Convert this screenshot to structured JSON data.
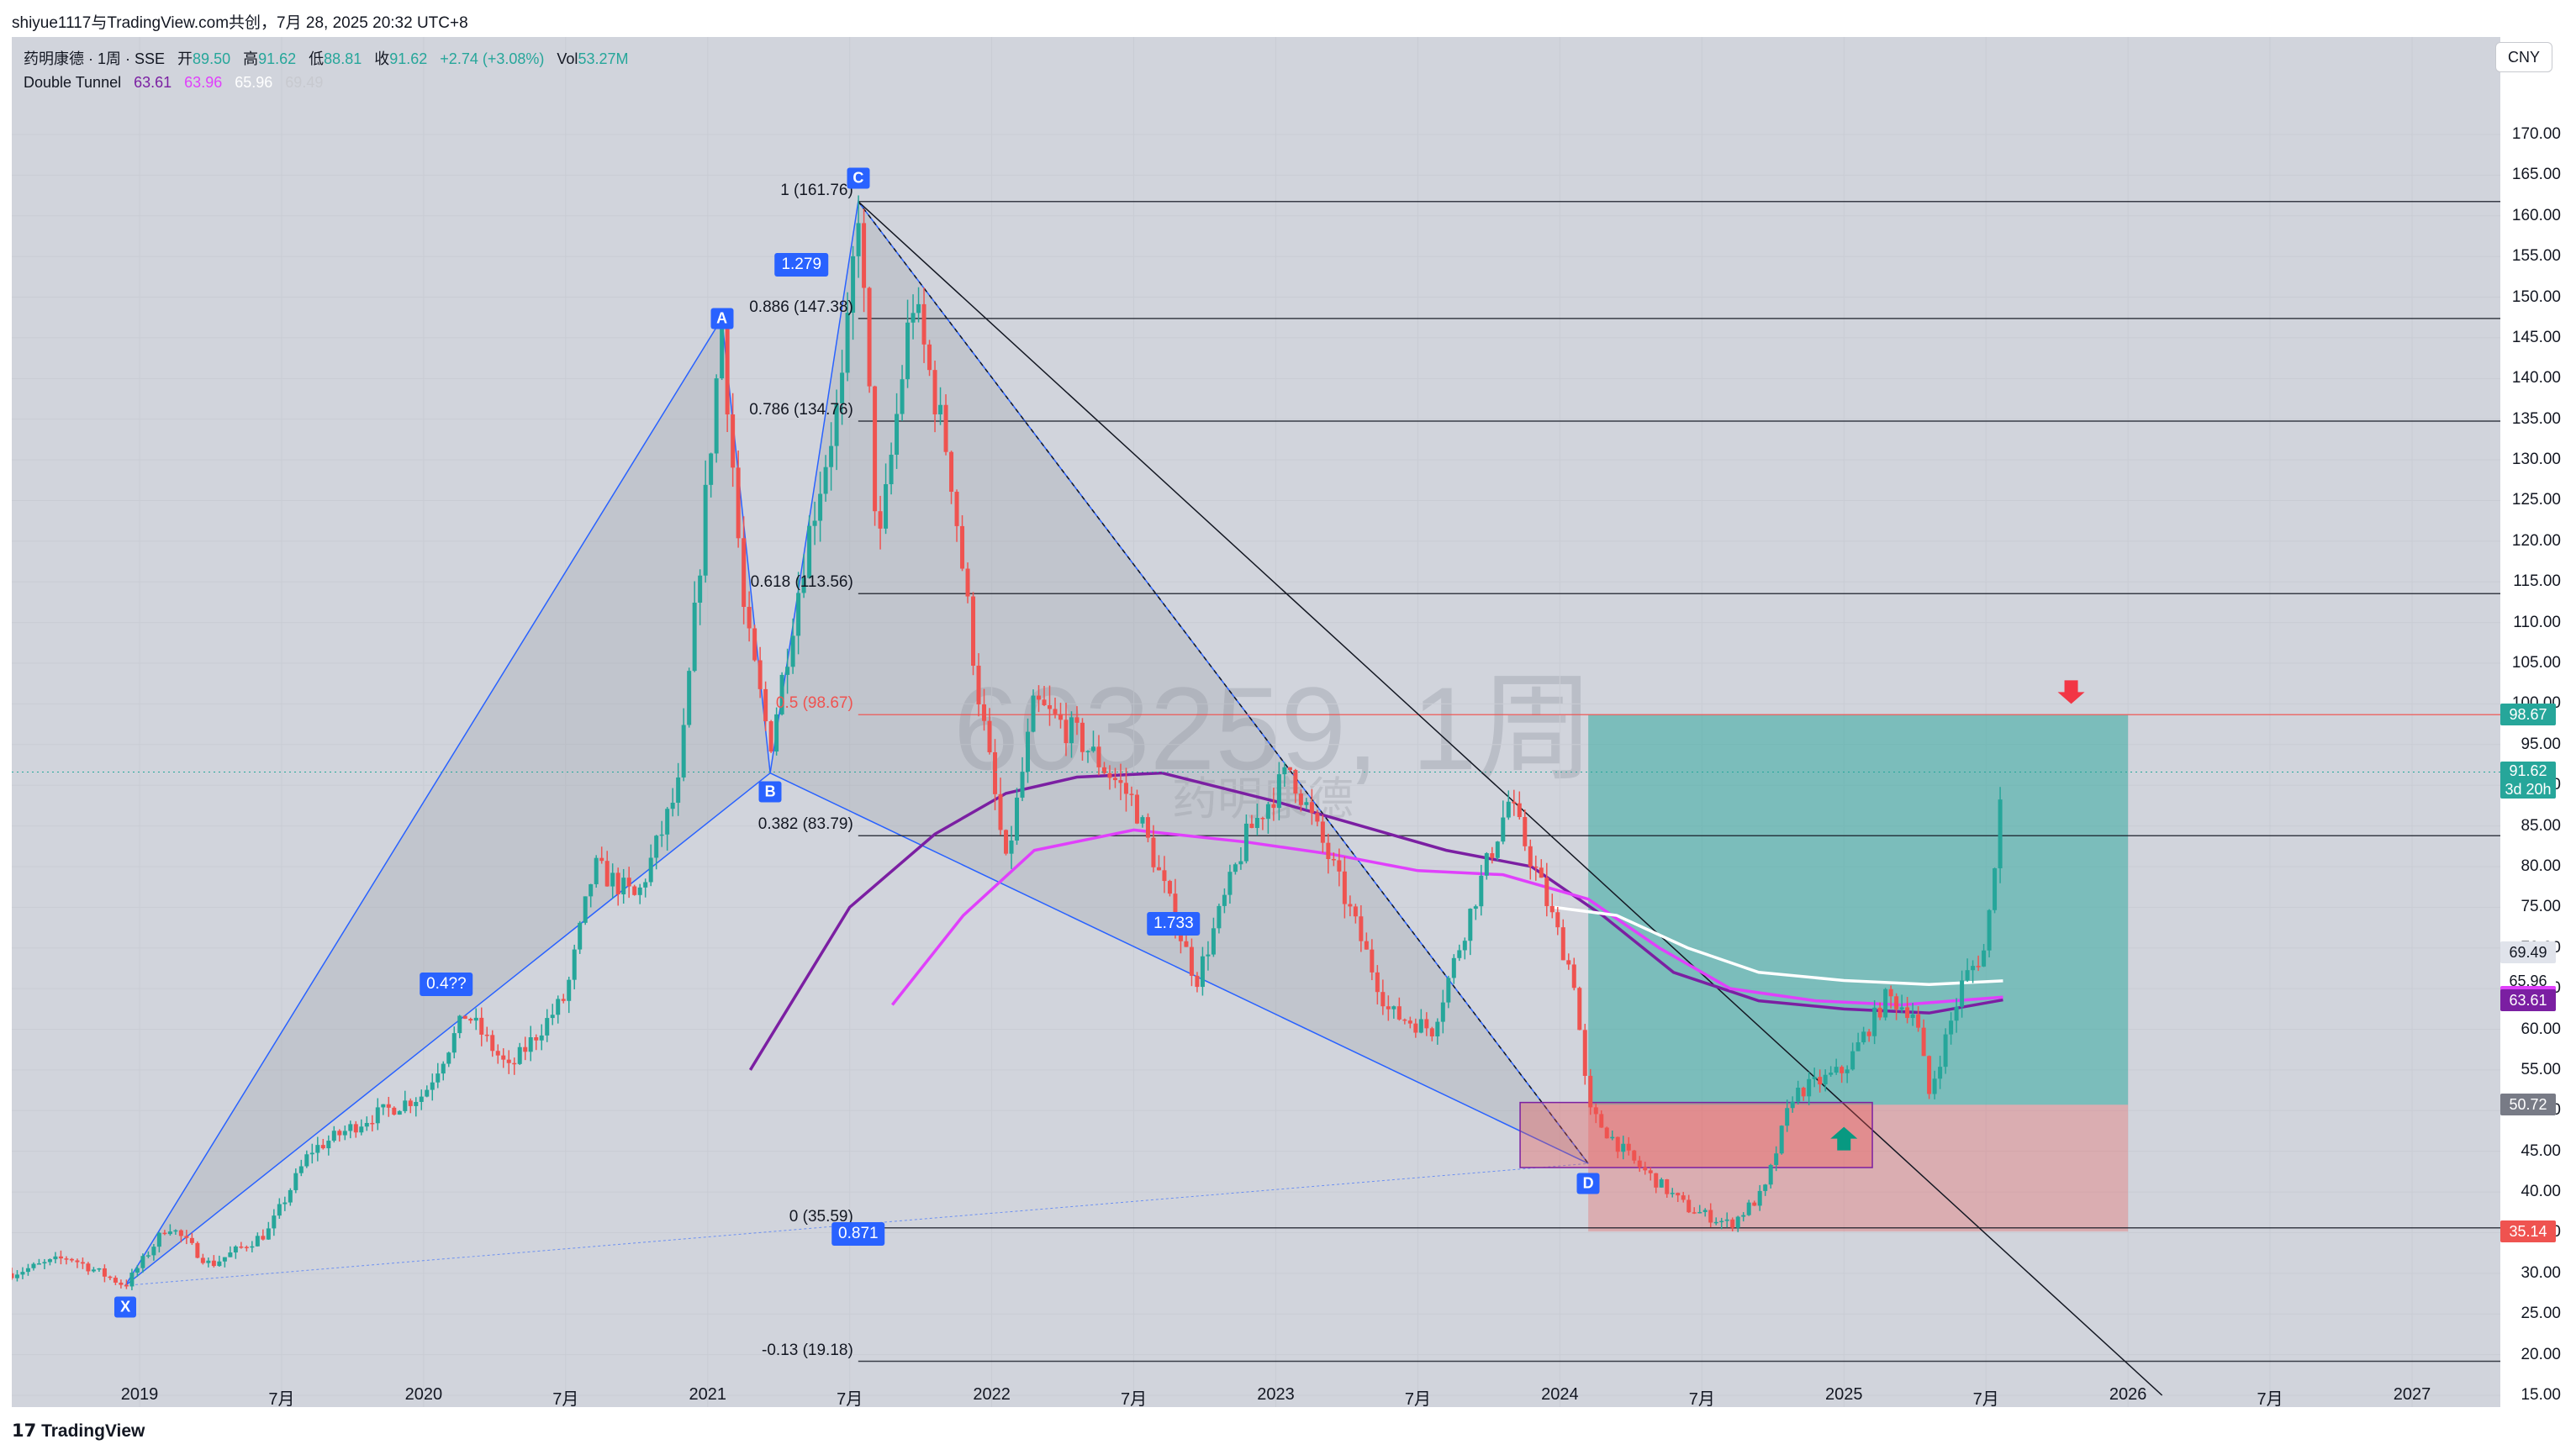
{
  "header": {
    "attribution": "shiyue1117与TradingView.com共创，7月 28, 2025 20:32 UTC+8",
    "symbol": "药明康德 · 1周 · SSE",
    "ohlc": {
      "open_label": "开",
      "open": "89.50",
      "high_label": "高",
      "high": "91.62",
      "low_label": "低",
      "low": "88.81",
      "close_label": "收",
      "close": "91.62",
      "change": "+2.74 (+3.08%)",
      "vol_label": "Vol",
      "vol": "53.27M"
    },
    "indicator": {
      "name": "Double Tunnel",
      "v1": "63.61",
      "v2": "63.96",
      "v3": "65.96",
      "v4": "69.49"
    },
    "currency_button": "CNY"
  },
  "watermark": {
    "symbol": "603259, 1周",
    "name": "药明康德"
  },
  "footer": {
    "brand": "TradingView"
  },
  "colors": {
    "up": "#26a69a",
    "down": "#ef5350",
    "harmonic": "#2962ff",
    "tunnel_purple": "#7b1fa2",
    "tunnel_magenta": "#e040fb",
    "tunnel_white": "#ffffff",
    "target_zone": "#26a69a",
    "stop_zone": "#ef5350"
  },
  "chart_data": {
    "type": "candlestick",
    "title": "药明康德 · 1周 · SSE",
    "ylim": [
      15,
      175
    ],
    "yticks": [
      15,
      20,
      25,
      30,
      35,
      40,
      45,
      50,
      55,
      60,
      65,
      70,
      75,
      80,
      85,
      90,
      95,
      100,
      105,
      110,
      115,
      120,
      125,
      130,
      135,
      140,
      145,
      150,
      155,
      160,
      165,
      170
    ],
    "x_labels": [
      {
        "t": 2019.0,
        "label": "2019"
      },
      {
        "t": 2019.5,
        "label": "7月"
      },
      {
        "t": 2020.0,
        "label": "2020"
      },
      {
        "t": 2020.5,
        "label": "7月"
      },
      {
        "t": 2021.0,
        "label": "2021"
      },
      {
        "t": 2021.5,
        "label": "7月"
      },
      {
        "t": 2022.0,
        "label": "2022"
      },
      {
        "t": 2022.5,
        "label": "7月"
      },
      {
        "t": 2023.0,
        "label": "2023"
      },
      {
        "t": 2023.5,
        "label": "7月"
      },
      {
        "t": 2024.0,
        "label": "2024"
      },
      {
        "t": 2024.5,
        "label": "7月"
      },
      {
        "t": 2025.0,
        "label": "2025"
      },
      {
        "t": 2025.5,
        "label": "7月"
      },
      {
        "t": 2026.0,
        "label": "2026"
      },
      {
        "t": 2026.5,
        "label": "7月"
      },
      {
        "t": 2027.0,
        "label": "2027"
      }
    ],
    "price_path": [
      [
        2018.55,
        30
      ],
      [
        2018.75,
        32
      ],
      [
        2018.95,
        28.5
      ],
      [
        2019.1,
        36
      ],
      [
        2019.25,
        31
      ],
      [
        2019.45,
        35
      ],
      [
        2019.6,
        45
      ],
      [
        2019.8,
        49
      ],
      [
        2020.0,
        52
      ],
      [
        2020.15,
        62
      ],
      [
        2020.3,
        55
      ],
      [
        2020.5,
        64
      ],
      [
        2020.6,
        80
      ],
      [
        2020.75,
        76
      ],
      [
        2020.9,
        90
      ],
      [
        2021.05,
        147
      ],
      [
        2021.13,
        110
      ],
      [
        2021.22,
        95
      ],
      [
        2021.35,
        120
      ],
      [
        2021.48,
        140
      ],
      [
        2021.53,
        161.76
      ],
      [
        2021.6,
        118
      ],
      [
        2021.72,
        150
      ],
      [
        2021.85,
        130
      ],
      [
        2021.95,
        102
      ],
      [
        2022.05,
        80
      ],
      [
        2022.15,
        100
      ],
      [
        2022.3,
        96
      ],
      [
        2022.5,
        88
      ],
      [
        2022.72,
        66
      ],
      [
        2022.9,
        84
      ],
      [
        2023.05,
        92
      ],
      [
        2023.2,
        80
      ],
      [
        2023.4,
        62
      ],
      [
        2023.55,
        60
      ],
      [
        2023.7,
        76
      ],
      [
        2023.82,
        88
      ],
      [
        2023.92,
        79
      ],
      [
        2024.05,
        66
      ],
      [
        2024.1,
        50
      ],
      [
        2024.25,
        44
      ],
      [
        2024.45,
        38
      ],
      [
        2024.6,
        36
      ],
      [
        2024.72,
        40
      ],
      [
        2024.82,
        52
      ],
      [
        2025.0,
        55
      ],
      [
        2025.15,
        64
      ],
      [
        2025.25,
        62
      ],
      [
        2025.3,
        52
      ],
      [
        2025.42,
        66
      ],
      [
        2025.5,
        70
      ],
      [
        2025.56,
        91.62
      ]
    ],
    "current_price": 91.62,
    "current_countdown": "3d 20h",
    "price_tags": [
      {
        "value": 98.67,
        "label": "98.67",
        "bg": "#26a69a",
        "fg": "#ffffff"
      },
      {
        "value": 69.49,
        "label": "69.49",
        "bg": "#e0e3eb",
        "fg": "#131722"
      },
      {
        "value": 65.96,
        "label": "65.96",
        "bg": "#ffffff",
        "fg": "#131722"
      },
      {
        "value": 63.96,
        "label": "63.96",
        "bg": "#e040fb",
        "fg": "#ffffff"
      },
      {
        "value": 63.61,
        "label": "63.61",
        "bg": "#7b1fa2",
        "fg": "#ffffff"
      },
      {
        "value": 50.72,
        "label": "50.72",
        "bg": "#787b86",
        "fg": "#ffffff"
      },
      {
        "value": 35.14,
        "label": "35.14",
        "bg": "#ef5350",
        "fg": "#ffffff"
      }
    ],
    "harmonic_points": [
      {
        "name": "X",
        "t": 2018.95,
        "price": 28.5
      },
      {
        "name": "A",
        "t": 2021.05,
        "price": 147.38
      },
      {
        "name": "B",
        "t": 2021.22,
        "price": 91.5
      },
      {
        "name": "C",
        "t": 2021.53,
        "price": 161.76
      },
      {
        "name": "D",
        "t": 2024.1,
        "price": 43.5
      }
    ],
    "ratio_labels": [
      {
        "text": "0.4??",
        "t": 2020.08,
        "price": 65.5
      },
      {
        "text": "1.279",
        "t": 2021.33,
        "price": 154
      },
      {
        "text": "1.733",
        "t": 2022.64,
        "price": 73
      },
      {
        "text": "0.871",
        "t": 2021.53,
        "price": 34.8
      }
    ],
    "fib_levels": [
      {
        "ratio": "1",
        "price": 161.76,
        "label": "1 (161.76)"
      },
      {
        "ratio": "0.886",
        "price": 147.38,
        "label": "0.886 (147.38)"
      },
      {
        "ratio": "0.786",
        "price": 134.76,
        "label": "0.786 (134.76)"
      },
      {
        "ratio": "0.618",
        "price": 113.56,
        "label": "0.618 (113.56)"
      },
      {
        "ratio": "0.5",
        "price": 98.67,
        "label": "0.5 (98.67)"
      },
      {
        "ratio": "0.382",
        "price": 83.79,
        "label": "0.382 (83.79)"
      },
      {
        "ratio": "0",
        "price": 35.59,
        "label": "0 (35.59)"
      },
      {
        "ratio": "-0.13",
        "price": 19.18,
        "label": "-0.13 (19.18)"
      }
    ],
    "position_tool": {
      "t_start": 2024.1,
      "t_end": 2026.0,
      "entry": 50.72,
      "target": 98.67,
      "stop": 35.14
    },
    "support_box": {
      "t_start": 2023.86,
      "t_end": 2025.1,
      "top": 51,
      "bottom": 43
    },
    "tunnels": [
      {
        "name": "63.61",
        "color": "#7b1fa2",
        "points": [
          [
            2021.15,
            55
          ],
          [
            2021.5,
            75
          ],
          [
            2021.8,
            84
          ],
          [
            2022.05,
            89
          ],
          [
            2022.3,
            91
          ],
          [
            2022.6,
            91.5
          ],
          [
            2023.0,
            88
          ],
          [
            2023.3,
            85
          ],
          [
            2023.6,
            82
          ],
          [
            2023.9,
            80
          ],
          [
            2024.15,
            74
          ],
          [
            2024.4,
            67
          ],
          [
            2024.7,
            63.5
          ],
          [
            2025.0,
            62.5
          ],
          [
            2025.3,
            62
          ],
          [
            2025.56,
            63.61
          ]
        ]
      },
      {
        "name": "63.96",
        "color": "#e040fb",
        "points": [
          [
            2021.65,
            63
          ],
          [
            2021.9,
            74
          ],
          [
            2022.15,
            82
          ],
          [
            2022.5,
            84.5
          ],
          [
            2022.9,
            83
          ],
          [
            2023.2,
            81.5
          ],
          [
            2023.5,
            79.5
          ],
          [
            2023.8,
            79
          ],
          [
            2024.1,
            76
          ],
          [
            2024.35,
            70
          ],
          [
            2024.6,
            65
          ],
          [
            2024.9,
            63.5
          ],
          [
            2025.2,
            63
          ],
          [
            2025.56,
            63.96
          ]
        ]
      },
      {
        "name": "65.96",
        "color": "#ffffff",
        "points": [
          [
            2023.98,
            75
          ],
          [
            2024.2,
            74
          ],
          [
            2024.45,
            70
          ],
          [
            2024.7,
            67
          ],
          [
            2025.0,
            66
          ],
          [
            2025.3,
            65.5
          ],
          [
            2025.56,
            65.96
          ]
        ]
      }
    ]
  }
}
